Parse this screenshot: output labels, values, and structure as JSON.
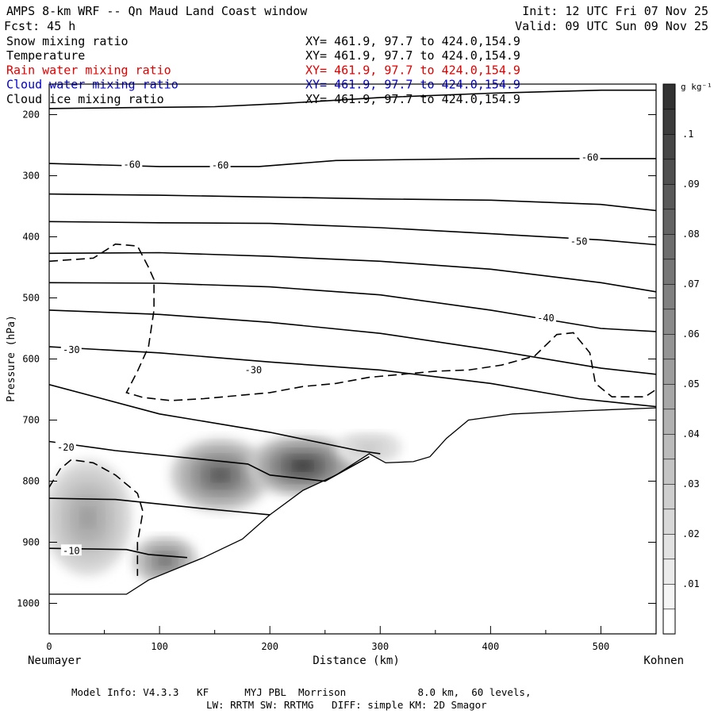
{
  "header": {
    "title": "AMPS 8-km WRF -- Qn Maud Land Coast window",
    "init": "Init: 12 UTC Fri 07 Nov 25",
    "fcst": "Fcst:   45 h",
    "valid": "Valid: 09 UTC Sun 09 Nov 25"
  },
  "fields": [
    {
      "name": "Snow mixing ratio",
      "xy": "XY= 461.9, 97.7 to 424.0,154.9",
      "color": "#000000"
    },
    {
      "name": "Temperature",
      "xy": "XY= 461.9, 97.7 to 424.0,154.9",
      "color": "#000000"
    },
    {
      "name": "Rain water mixing ratio",
      "xy": "XY= 461.9, 97.7 to 424.0,154.9",
      "color": "#e00000"
    },
    {
      "name": "Cloud water mixing ratio",
      "xy": "XY= 461.9, 97.7 to 424.0,154.9",
      "color": "#0000cc"
    },
    {
      "name": "Cloud ice mixing ratio",
      "xy": "XY= 461.9, 97.7 to 424.0,154.9",
      "color": "#000000"
    }
  ],
  "footer": {
    "line1": "Model Info: V4.3.3   KF      MYJ PBL  Morrison            8.0 km,  60 levels,",
    "line2": "LW: RRTM SW: RRTMG   DIFF: simple KM: 2D Smagor"
  },
  "chart_data": {
    "type": "heatmap",
    "title": "AMPS 8-km WRF -- Qn Maud Land Coast window",
    "xlabel": "Distance (km)",
    "ylabel": "Pressure (hPa)",
    "x_left_label": "Neumayer",
    "x_right_label": "Kohnen",
    "xlim": [
      0,
      550
    ],
    "ylim": [
      1050,
      150
    ],
    "xticks": [
      0,
      100,
      200,
      300,
      400,
      500
    ],
    "yticks": [
      200,
      300,
      400,
      500,
      600,
      700,
      800,
      900,
      1000
    ],
    "colorbar": {
      "unit": "g kg⁻¹",
      "ticks": [
        ".01",
        ".02",
        ".03",
        ".04",
        ".05",
        ".06",
        ".07",
        ".08",
        ".09",
        ".1"
      ],
      "levels": [
        0.005,
        0.01,
        0.015,
        0.02,
        0.025,
        0.03,
        0.035,
        0.04,
        0.045,
        0.05,
        0.055,
        0.06,
        0.065,
        0.07,
        0.075,
        0.08,
        0.085,
        0.09,
        0.095,
        0.1,
        0.105,
        0.11
      ]
    },
    "terrain": [
      [
        0,
        985
      ],
      [
        70,
        985
      ],
      [
        90,
        962
      ],
      [
        140,
        925
      ],
      [
        175,
        895
      ],
      [
        200,
        855
      ],
      [
        230,
        815
      ],
      [
        260,
        790
      ],
      [
        290,
        755
      ],
      [
        305,
        770
      ],
      [
        330,
        768
      ],
      [
        345,
        760
      ],
      [
        360,
        730
      ],
      [
        380,
        700
      ],
      [
        420,
        690
      ],
      [
        480,
        685
      ],
      [
        550,
        680
      ]
    ],
    "temperature_isotherms": [
      {
        "points": [
          [
            0,
            190
          ],
          [
            150,
            187
          ],
          [
            210,
            182
          ],
          [
            300,
            172
          ],
          [
            400,
            165
          ],
          [
            500,
            160
          ],
          [
            550,
            160
          ]
        ],
        "label": ""
      },
      {
        "points": [
          [
            0,
            280
          ],
          [
            100,
            285
          ],
          [
            190,
            285
          ],
          [
            260,
            275
          ],
          [
            400,
            272
          ],
          [
            500,
            272
          ],
          [
            550,
            272
          ]
        ],
        "label": "-60",
        "label_positions": [
          [
            75,
            282
          ],
          [
            155,
            283
          ],
          [
            490,
            270
          ]
        ]
      },
      {
        "points": [
          [
            0,
            330
          ],
          [
            100,
            332
          ],
          [
            200,
            335
          ],
          [
            300,
            338
          ],
          [
            400,
            340
          ],
          [
            500,
            347
          ],
          [
            550,
            357
          ]
        ],
        "label": ""
      },
      {
        "points": [
          [
            0,
            375
          ],
          [
            100,
            377
          ],
          [
            200,
            378
          ],
          [
            300,
            385
          ],
          [
            400,
            395
          ],
          [
            500,
            405
          ],
          [
            550,
            413
          ]
        ],
        "label": "-50",
        "label_positions": [
          [
            480,
            408
          ]
        ]
      },
      {
        "points": [
          [
            0,
            427
          ],
          [
            100,
            426
          ],
          [
            200,
            432
          ],
          [
            300,
            440
          ],
          [
            400,
            453
          ],
          [
            500,
            475
          ],
          [
            550,
            490
          ]
        ],
        "label": ""
      },
      {
        "points": [
          [
            0,
            475
          ],
          [
            100,
            476
          ],
          [
            200,
            482
          ],
          [
            300,
            495
          ],
          [
            400,
            520
          ],
          [
            500,
            550
          ],
          [
            550,
            555
          ]
        ],
        "label": "-40",
        "label_positions": [
          [
            450,
            533
          ]
        ]
      },
      {
        "points": [
          [
            0,
            520
          ],
          [
            100,
            527
          ],
          [
            200,
            540
          ],
          [
            300,
            558
          ],
          [
            400,
            585
          ],
          [
            500,
            615
          ],
          [
            550,
            625
          ]
        ],
        "label": ""
      },
      {
        "points": [
          [
            0,
            580
          ],
          [
            100,
            590
          ],
          [
            200,
            605
          ],
          [
            300,
            618
          ],
          [
            400,
            640
          ],
          [
            480,
            665
          ],
          [
            550,
            678
          ]
        ],
        "label": "-30",
        "label_positions": [
          [
            20,
            585
          ],
          [
            185,
            618
          ]
        ]
      },
      {
        "points": [
          [
            0,
            642
          ],
          [
            100,
            690
          ],
          [
            200,
            720
          ],
          [
            280,
            750
          ],
          [
            300,
            755
          ]
        ],
        "label": ""
      },
      {
        "points": [
          [
            0,
            735
          ],
          [
            60,
            750
          ],
          [
            180,
            772
          ],
          [
            200,
            790
          ],
          [
            250,
            800
          ],
          [
            290,
            760
          ]
        ],
        "label": "-20",
        "label_positions": [
          [
            15,
            745
          ]
        ]
      },
      {
        "points": [
          [
            0,
            828
          ],
          [
            60,
            830
          ],
          [
            140,
            845
          ],
          [
            170,
            850
          ],
          [
            200,
            855
          ]
        ],
        "label": ""
      },
      {
        "points": [
          [
            0,
            910
          ],
          [
            70,
            912
          ],
          [
            90,
            920
          ],
          [
            125,
            925
          ]
        ],
        "label": "-10",
        "label_positions": [
          [
            20,
            914
          ]
        ]
      }
    ],
    "dashed_contours": [
      {
        "name": "cloud-water-upper",
        "points": [
          [
            0,
            440
          ],
          [
            40,
            435
          ],
          [
            60,
            412
          ],
          [
            80,
            415
          ],
          [
            90,
            450
          ],
          [
            95,
            470
          ],
          [
            95,
            520
          ],
          [
            90,
            580
          ],
          [
            80,
            620
          ],
          [
            70,
            655
          ],
          [
            85,
            663
          ],
          [
            110,
            668
          ],
          [
            140,
            665
          ],
          [
            170,
            660
          ],
          [
            200,
            655
          ],
          [
            230,
            645
          ],
          [
            260,
            640
          ],
          [
            290,
            630
          ],
          [
            320,
            625
          ],
          [
            350,
            620
          ],
          [
            380,
            618
          ],
          [
            410,
            610
          ],
          [
            440,
            595
          ],
          [
            460,
            560
          ],
          [
            475,
            557
          ],
          [
            490,
            590
          ],
          [
            495,
            640
          ],
          [
            510,
            662
          ],
          [
            540,
            662
          ],
          [
            550,
            650
          ]
        ]
      },
      {
        "name": "cloud-water-lower",
        "points": [
          [
            0,
            810
          ],
          [
            10,
            780
          ],
          [
            20,
            765
          ],
          [
            40,
            770
          ],
          [
            60,
            790
          ],
          [
            80,
            820
          ],
          [
            85,
            850
          ],
          [
            80,
            900
          ],
          [
            80,
            955
          ]
        ]
      }
    ],
    "shaded_blobs": [
      {
        "x": 155,
        "p": 790,
        "rx": 45,
        "rp": 60,
        "value": 0.085
      },
      {
        "x": 230,
        "p": 775,
        "rx": 50,
        "rp": 50,
        "value": 0.1
      },
      {
        "x": 35,
        "p": 860,
        "rx": 40,
        "rp": 95,
        "value": 0.045
      },
      {
        "x": 105,
        "p": 930,
        "rx": 30,
        "rp": 40,
        "value": 0.07
      },
      {
        "x": 290,
        "p": 745,
        "rx": 30,
        "rp": 25,
        "value": 0.02
      }
    ]
  }
}
